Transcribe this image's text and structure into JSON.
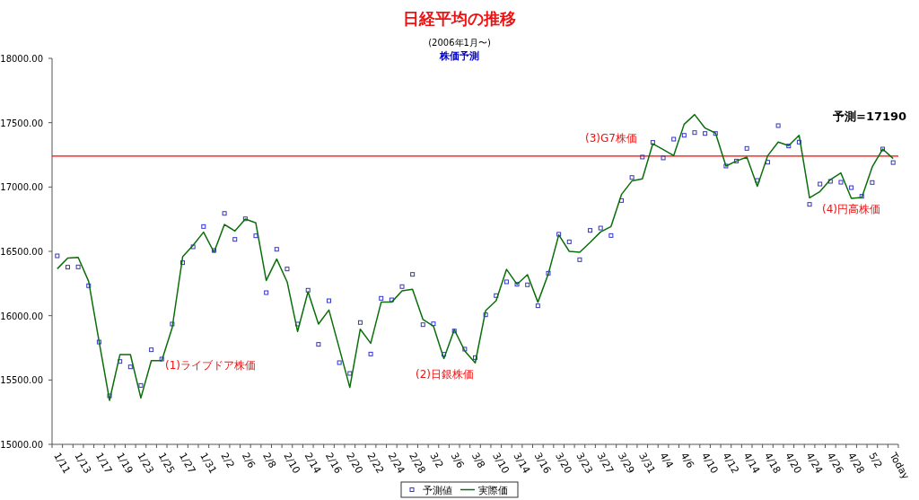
{
  "chart_data": {
    "type": "line",
    "title": "日経平均の推移",
    "subtitle": "(2006年1月〜)",
    "annotations": [
      "株価予測",
      "(1)ライブドア株価",
      "(2)日銀株価",
      "(3)G7株価",
      "(4)円高株価",
      "予測=17190"
    ],
    "categories": [
      "1/11",
      null,
      "1/13",
      null,
      "1/17",
      null,
      "1/19",
      null,
      "1/23",
      null,
      "1/25",
      null,
      "1/27",
      null,
      "1/31",
      null,
      "2/2",
      null,
      "2/6",
      null,
      "2/8",
      null,
      "2/10",
      null,
      "2/14",
      null,
      "2/16",
      null,
      "2/20",
      null,
      "2/22",
      null,
      "2/24",
      null,
      "2/28",
      null,
      "3/2",
      null,
      "3/6",
      null,
      "3/8",
      null,
      "3/10",
      null,
      "3/14",
      null,
      "3/16",
      null,
      "3/20",
      null,
      "3/23",
      null,
      "3/27",
      null,
      "3/29",
      null,
      "3/31",
      null,
      "4/4",
      null,
      "4/6",
      null,
      "4/10",
      null,
      "4/12",
      null,
      "4/14",
      null,
      "4/18",
      null,
      "4/20",
      null,
      "4/24",
      null,
      "4/26",
      null,
      "4/28",
      null,
      "5/2",
      null,
      "Today"
    ],
    "series": [
      {
        "name": "予測値",
        "type": "scatter",
        "marker": "square",
        "color": "#3333cc",
        "values": [
          16465,
          16377,
          16379,
          16233,
          15795,
          15377,
          15644,
          15602,
          15458,
          15735,
          15663,
          15935,
          16412,
          16535,
          16693,
          16507,
          16795,
          16593,
          16753,
          16621,
          16179,
          16516,
          16363,
          15935,
          16198,
          15777,
          16116,
          15635,
          15551,
          15947,
          15702,
          16135,
          16123,
          16226,
          16321,
          15930,
          15937,
          15700,
          15881,
          15740,
          15674,
          16007,
          16156,
          16263,
          16244,
          16240,
          16077,
          16330,
          16633,
          16574,
          16435,
          16663,
          16681,
          16623,
          16895,
          17074,
          17233,
          17347,
          17226,
          17372,
          17402,
          17423,
          17416,
          17416,
          17163,
          17202,
          17300,
          17051,
          17193,
          17477,
          17319,
          17349,
          16865,
          17023,
          17044,
          17037,
          16995,
          16928,
          17035,
          17295,
          17190
        ]
      },
      {
        "name": "実際価",
        "type": "line",
        "color": "#0a6e0a",
        "values": [
          16365,
          16447,
          16453,
          16267,
          15800,
          15342,
          15698,
          15698,
          15360,
          15651,
          15651,
          15907,
          16458,
          16547,
          16649,
          16493,
          16709,
          16658,
          16751,
          16721,
          16274,
          16440,
          16263,
          15877,
          16186,
          15935,
          16044,
          15744,
          15442,
          15895,
          15786,
          16105,
          16105,
          16193,
          16205,
          15970,
          15919,
          15667,
          15891,
          15726,
          15633,
          16040,
          16116,
          16360,
          16244,
          16319,
          16105,
          16326,
          16628,
          16500,
          16493,
          16570,
          16651,
          16693,
          16942,
          17047,
          17063,
          17337,
          17291,
          17244,
          17488,
          17563,
          17458,
          17419,
          17163,
          17202,
          17233,
          17005,
          17244,
          17349,
          17321,
          17402,
          16916,
          16965,
          17058,
          17109,
          16912,
          16919,
          17156,
          17295,
          17221
        ]
      }
    ],
    "ylim": [
      15000,
      18000
    ],
    "yticks": [
      {
        "value": 15000,
        "label": "15000.00"
      },
      {
        "value": 15500,
        "label": "15500.00"
      },
      {
        "value": 16000,
        "label": "16000.00"
      },
      {
        "value": 16500,
        "label": "16500.00"
      },
      {
        "value": 17000,
        "label": "17000.00"
      },
      {
        "value": 17500,
        "label": "17500.00"
      },
      {
        "value": 18000,
        "label": "18000.00"
      }
    ],
    "ref_lines": [
      {
        "axis": "y",
        "value": 17240,
        "color": "#ff0000"
      }
    ],
    "grid": false,
    "legend": "bottom"
  }
}
